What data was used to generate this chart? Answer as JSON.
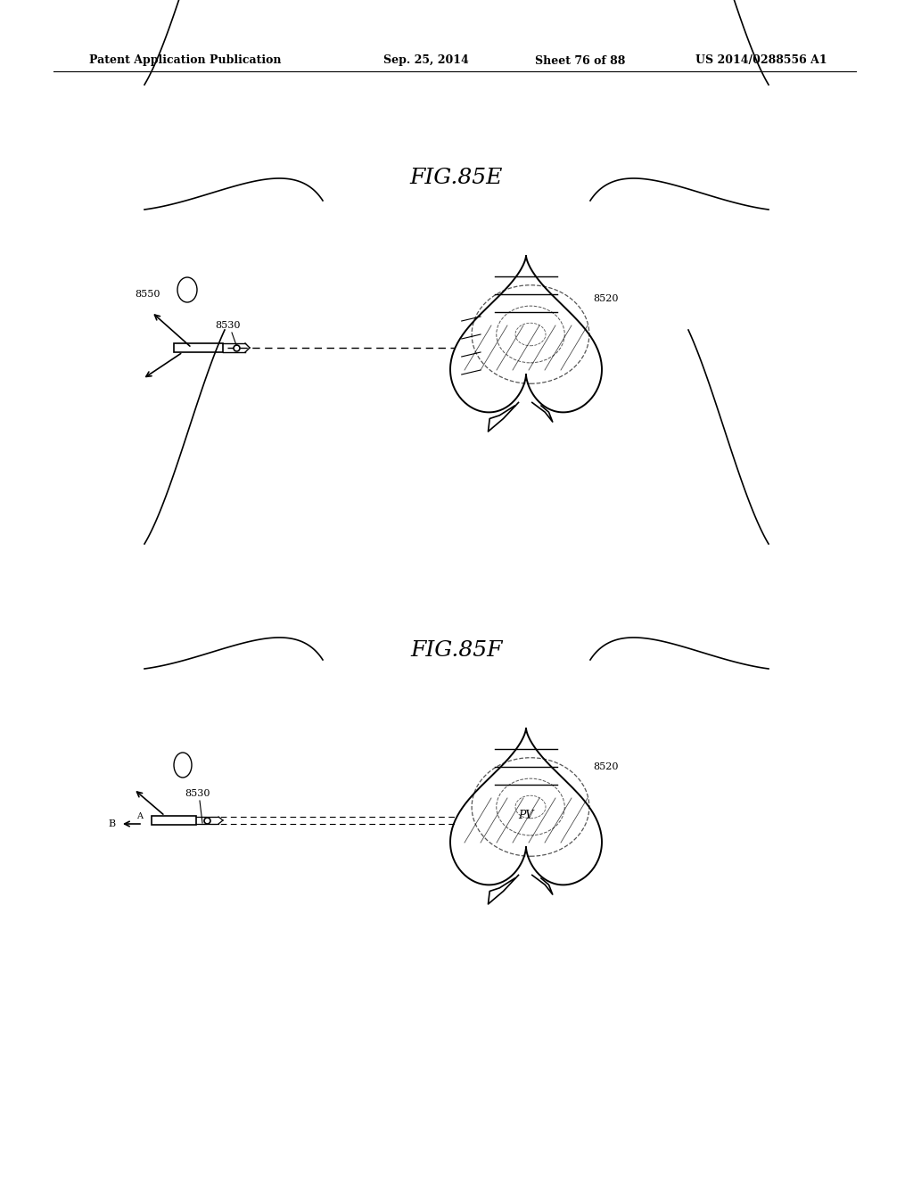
{
  "bg_color": "#ffffff",
  "header_text": "Patent Application Publication",
  "header_date": "Sep. 25, 2014",
  "header_sheet": "Sheet 76 of 88",
  "header_patent": "US 2014/0288556 A1",
  "fig_e_title": "FIG.85E",
  "fig_f_title": "FIG.85F",
  "label_8530_e": "8530",
  "label_8550": "8550",
  "label_8520_e": "8520",
  "label_8530_f": "8530",
  "label_8520_f": "8520",
  "label_B": "B",
  "label_A": "A",
  "label_PV": "PV",
  "line_color": "#000000",
  "dashed_color": "#555555"
}
